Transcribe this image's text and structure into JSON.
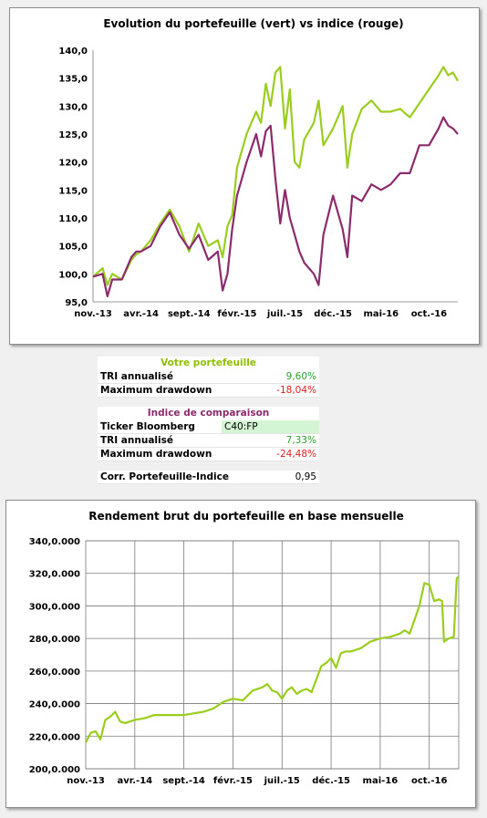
{
  "chart_data": [
    {
      "type": "line",
      "title": "Evolution du portefeuille (vert) vs indice (rouge)",
      "x_tick_labels": [
        "nov.-13",
        "avr.-14",
        "sept.-14",
        "févr.-15",
        "juil.-15",
        "déc.-15",
        "mai-16",
        "oct.-16"
      ],
      "y_tick_labels": [
        "95,0",
        "100,0",
        "105,0",
        "110,0",
        "115,0",
        "120,0",
        "125,0",
        "130,0",
        "135,0",
        "140,0"
      ],
      "ylim": [
        95,
        140
      ],
      "x_range": [
        0,
        38
      ],
      "grid": true,
      "series": [
        {
          "color": "#9acd1e",
          "x": [
            0,
            1,
            1.5,
            2,
            3,
            4,
            4.5,
            5,
            6,
            7,
            8,
            9,
            10,
            11,
            12,
            13,
            13.5,
            14,
            14.5,
            15,
            16,
            17,
            17.5,
            18,
            18.5,
            19,
            19.5,
            20,
            20.5,
            21,
            21.5,
            22,
            23,
            23.5,
            24,
            25,
            26,
            26.5,
            27,
            28,
            29,
            30,
            31,
            32,
            33,
            34,
            35,
            36,
            36.5,
            37,
            37.5,
            38
          ],
          "y": [
            99.5,
            101,
            98,
            100,
            99,
            102.5,
            103.5,
            104,
            106,
            109,
            111.5,
            108.5,
            104,
            109,
            105,
            106,
            103,
            108.5,
            110.5,
            119,
            125,
            129,
            127,
            134,
            130,
            136,
            137,
            126,
            133,
            120,
            119,
            124,
            127,
            131,
            123,
            126,
            130,
            119,
            125,
            129.5,
            131,
            129,
            129,
            129.5,
            128,
            130.5,
            133,
            135.5,
            137,
            135.5,
            136,
            134.5
          ]
        },
        {
          "color": "#8b2b6b",
          "x": [
            0,
            1,
            1.5,
            2,
            3,
            4,
            4.5,
            5,
            6,
            7,
            8,
            9,
            10,
            11,
            12,
            13,
            13.5,
            14,
            14.5,
            15,
            16,
            17,
            17.5,
            18,
            18.5,
            19,
            19.5,
            20,
            20.5,
            21,
            21.5,
            22,
            23,
            23.5,
            24,
            25,
            26,
            26.5,
            27,
            28,
            29,
            30,
            31,
            32,
            33,
            34,
            35,
            36,
            36.5,
            37,
            37.5,
            38
          ],
          "y": [
            99.5,
            100,
            96,
            99,
            99,
            103,
            104,
            104,
            105,
            108.5,
            111,
            107,
            104.5,
            107,
            102.5,
            104,
            97,
            100,
            108,
            114,
            120,
            125,
            121,
            125.5,
            126.5,
            117,
            109,
            115,
            110,
            107,
            104,
            102,
            100,
            98,
            107,
            114,
            108,
            103,
            114,
            113,
            116,
            115,
            116,
            118,
            118,
            123,
            123,
            126,
            128,
            126.5,
            126,
            125
          ]
        }
      ]
    },
    {
      "type": "line",
      "title": "Rendement brut du portefeuille en base mensuelle",
      "x_tick_labels": [
        "nov.-13",
        "avr.-14",
        "sept.-14",
        "févr.-15",
        "juil.-15",
        "déc.-15",
        "mai-16",
        "oct.-16"
      ],
      "y_tick_labels": [
        "200,0.000",
        "220,0.000",
        "240,0.000",
        "260,0.000",
        "280,0.000",
        "300,0.000",
        "320,0.000",
        "340,0.000"
      ],
      "ylim": [
        200,
        340
      ],
      "x_range": [
        0,
        38
      ],
      "grid": true,
      "series": [
        {
          "color": "#9acd1e",
          "x": [
            0,
            0.5,
            1,
            1.5,
            2,
            2.5,
            3,
            3.5,
            4,
            4.5,
            5,
            6,
            7,
            8,
            9,
            10,
            11,
            12,
            13,
            14,
            15,
            16,
            17,
            18,
            18.5,
            19,
            19.5,
            20,
            20.5,
            21,
            21.5,
            22,
            22.5,
            23,
            24,
            24.5,
            25,
            25.5,
            26,
            26.5,
            27,
            28,
            29,
            30,
            31,
            32,
            32.5,
            33,
            34,
            34.5,
            35,
            35.5,
            36,
            36.3,
            36.5,
            37,
            37.5,
            37.8,
            38
          ],
          "y": [
            216,
            222,
            223,
            218,
            230,
            232,
            235,
            229,
            228,
            229,
            230,
            231,
            233,
            233,
            233,
            233,
            234,
            235,
            237,
            241,
            243,
            242,
            248,
            250,
            252,
            248,
            247,
            243,
            248,
            250,
            246,
            248,
            249,
            247,
            263,
            265,
            268,
            262,
            271,
            272,
            272,
            274,
            278,
            280,
            281,
            283,
            285,
            283,
            300,
            314,
            313,
            303,
            304,
            303,
            278,
            280,
            281,
            317,
            318
          ]
        }
      ]
    }
  ],
  "tables": {
    "portfolio": {
      "title": "Votre portefeuille",
      "tri_label": "TRI annualisé",
      "tri_value": "9,60%",
      "dd_label": "Maximum drawdown",
      "dd_value": "-18,04%"
    },
    "index": {
      "title": "Indice de comparaison",
      "ticker_label": "Ticker Bloomberg",
      "ticker_value": "C40:FP",
      "tri_label": "TRI annualisé",
      "tri_value": "7,33%",
      "dd_label": "Maximum drawdown",
      "dd_value": "-24,48%"
    },
    "corr": {
      "label": "Corr. Portefeuille-Indice",
      "value": "0,95"
    }
  }
}
